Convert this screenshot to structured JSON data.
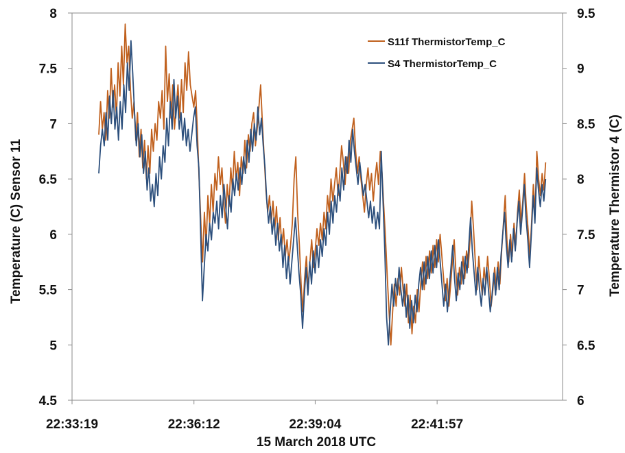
{
  "chart_data": {
    "type": "line",
    "title": "",
    "xlabel": "15 March 2018 UTC",
    "ylabel": "Temperature (C) Sensor 11",
    "ylabel_right": "Temperature Thermistor 4 (C)",
    "xlim_seconds": [
      0,
      696
    ],
    "x_tick_labels": [
      {
        "label": "22:33:19",
        "t": 0
      },
      {
        "label": "22:36:12",
        "t": 173
      },
      {
        "label": "22:39:04",
        "t": 345
      },
      {
        "label": "22:41:57",
        "t": 518
      }
    ],
    "ylim": [
      4.5,
      8
    ],
    "y_ticks": [
      "4.5",
      "5",
      "5.5",
      "6",
      "6.5",
      "7",
      "7.5",
      "8"
    ],
    "ylim_right": [
      6,
      9.5
    ],
    "y_ticks_right": [
      "6",
      "6.5",
      "7",
      "7.5",
      "8",
      "8.5",
      "9",
      "9.5"
    ],
    "grid": false,
    "legend_position": "top-right",
    "series": [
      {
        "name": "S11f ThermistorTemp_C",
        "axis": "left",
        "color": "#c0601d",
        "t_start": 38,
        "t_end": 672,
        "values": [
          6.9,
          7.2,
          6.95,
          7.1,
          6.85,
          7.3,
          7.05,
          7.5,
          7.15,
          7.35,
          7.05,
          7.55,
          7.25,
          7.7,
          7.35,
          7.9,
          7.55,
          7.7,
          7.3,
          7.05,
          7.2,
          6.85,
          7.1,
          6.7,
          6.95,
          6.6,
          6.85,
          6.5,
          6.8,
          6.55,
          6.95,
          6.75,
          7.0,
          6.85,
          7.2,
          7.05,
          7.3,
          6.95,
          7.7,
          7.2,
          7.45,
          7.05,
          7.35,
          6.95,
          7.15,
          7.35,
          7.05,
          7.4,
          7.1,
          7.55,
          7.3,
          7.65,
          7.35,
          7.25,
          7.15,
          7.3,
          6.95,
          6.5,
          6.1,
          5.75,
          6.2,
          5.9,
          6.35,
          6.1,
          6.45,
          6.2,
          6.55,
          6.4,
          6.7,
          6.45,
          6.6,
          6.3,
          6.1,
          6.45,
          6.25,
          6.6,
          6.4,
          6.75,
          6.5,
          6.65,
          6.35,
          6.7,
          6.55,
          6.85,
          6.6,
          6.9,
          6.75,
          7.0,
          7.1,
          6.8,
          6.95,
          7.15,
          7.35,
          7.0,
          6.7,
          6.4,
          6.2,
          6.35,
          6.1,
          6.3,
          6.05,
          6.25,
          5.95,
          6.15,
          5.9,
          6.05,
          5.8,
          5.95,
          5.75,
          5.9,
          6.1,
          6.5,
          6.7,
          6.2,
          5.9,
          5.55,
          5.3,
          5.6,
          5.8,
          5.5,
          5.75,
          5.95,
          5.7,
          5.85,
          6.05,
          5.9,
          6.1,
          5.95,
          6.2,
          6.05,
          6.35,
          6.2,
          6.5,
          6.3,
          6.45,
          6.6,
          6.35,
          6.55,
          6.8,
          6.65,
          6.45,
          6.7,
          6.55,
          6.85,
          6.95,
          7.05,
          6.75,
          6.55,
          6.7,
          6.5,
          6.35,
          6.2,
          6.45,
          6.6,
          6.4,
          6.55,
          6.3,
          6.5,
          6.65,
          6.45,
          6.75,
          6.55,
          6.25,
          5.95,
          5.6,
          5.3,
          5.0,
          5.3,
          5.55,
          5.35,
          5.6,
          5.45,
          5.7,
          5.5,
          5.35,
          5.55,
          5.2,
          5.45,
          5.1,
          5.35,
          5.2,
          5.5,
          5.3,
          5.55,
          5.75,
          5.5,
          5.8,
          5.6,
          5.85,
          5.65,
          5.9,
          5.7,
          5.95,
          5.75,
          6.0,
          5.8,
          5.6,
          5.4,
          5.6,
          5.35,
          5.55,
          5.75,
          5.95,
          5.65,
          5.45,
          5.7,
          5.55,
          5.8,
          5.6,
          5.85,
          5.7,
          5.95,
          6.3,
          6.05,
          5.75,
          5.5,
          5.8,
          5.6,
          5.45,
          5.7,
          5.55,
          5.8,
          5.6,
          5.35,
          5.5,
          5.7,
          5.5,
          5.75,
          5.55,
          5.85,
          6.1,
          6.35,
          5.95,
          5.75,
          6.0,
          5.8,
          6.1,
          5.9,
          6.2,
          6.4,
          6.1,
          6.3,
          6.55,
          6.25,
          6.05,
          5.8,
          6.1,
          6.45,
          6.2,
          6.75,
          6.5,
          6.35,
          6.55,
          6.4,
          6.65
        ]
      },
      {
        "name": "S4 ThermistorTemp_C",
        "axis": "right",
        "color": "#2c4f7c",
        "t_start": 38,
        "t_end": 672,
        "values": [
          8.05,
          8.3,
          8.45,
          8.3,
          8.6,
          8.35,
          8.75,
          8.5,
          8.8,
          8.45,
          8.65,
          8.35,
          8.7,
          8.45,
          8.85,
          8.6,
          9.05,
          8.8,
          9.25,
          8.95,
          8.6,
          8.3,
          8.5,
          8.2,
          8.4,
          8.05,
          8.25,
          7.9,
          8.1,
          7.8,
          7.95,
          7.75,
          8.05,
          7.85,
          8.2,
          8.0,
          8.3,
          8.15,
          8.55,
          8.3,
          8.7,
          8.45,
          8.9,
          8.55,
          8.75,
          8.45,
          8.6,
          8.35,
          8.55,
          8.3,
          8.45,
          8.25,
          8.4,
          8.55,
          8.65,
          8.3,
          8.1,
          7.5,
          6.9,
          7.2,
          7.5,
          7.35,
          7.6,
          7.45,
          7.7,
          7.6,
          7.8,
          7.55,
          7.85,
          7.65,
          7.95,
          7.75,
          7.55,
          7.85,
          7.7,
          8.0,
          7.85,
          8.05,
          7.9,
          8.1,
          7.95,
          8.2,
          8.05,
          8.35,
          8.15,
          8.45,
          8.25,
          8.5,
          8.35,
          8.65,
          8.4,
          8.55,
          8.3,
          8.1,
          7.8,
          7.6,
          7.75,
          7.5,
          7.65,
          7.4,
          7.6,
          7.35,
          7.5,
          7.2,
          7.4,
          7.1,
          7.3,
          7.05,
          7.25,
          7.45,
          7.65,
          7.4,
          7.15,
          6.95,
          6.65,
          6.95,
          7.2,
          6.95,
          7.25,
          7.05,
          7.35,
          7.15,
          7.4,
          7.2,
          7.45,
          7.3,
          7.55,
          7.4,
          7.7,
          7.5,
          7.8,
          7.6,
          7.85,
          7.7,
          7.95,
          7.8,
          8.1,
          7.9,
          8.2,
          8.05,
          8.35,
          8.15,
          8.45,
          8.25,
          8.1,
          7.95,
          8.15,
          8.0,
          7.85,
          7.95,
          7.8,
          7.65,
          7.8,
          7.6,
          7.75,
          7.55,
          7.7,
          7.55,
          8.25,
          7.8,
          7.35,
          6.75,
          6.5,
          6.8,
          7.05,
          6.85,
          7.1,
          6.95,
          7.2,
          7.0,
          6.85,
          7.05,
          6.75,
          6.95,
          6.65,
          6.9,
          6.7,
          6.95,
          6.8,
          7.05,
          7.2,
          7.0,
          7.25,
          7.05,
          7.3,
          7.1,
          7.35,
          7.15,
          7.4,
          7.2,
          7.45,
          7.25,
          7.05,
          6.85,
          7.05,
          6.8,
          7.0,
          7.2,
          7.4,
          7.1,
          6.9,
          7.15,
          7.0,
          7.25,
          7.05,
          7.3,
          7.15,
          7.4,
          7.65,
          7.35,
          7.15,
          6.95,
          7.2,
          7.0,
          6.85,
          7.1,
          6.95,
          7.2,
          7.0,
          6.8,
          6.95,
          7.15,
          6.95,
          7.2,
          7.0,
          7.3,
          7.5,
          7.7,
          7.4,
          7.2,
          7.45,
          7.25,
          7.55,
          7.35,
          7.6,
          7.8,
          7.5,
          7.7,
          7.95,
          7.65,
          7.45,
          7.2,
          7.5,
          7.85,
          7.6,
          8.1,
          7.9,
          7.75,
          7.95,
          7.8,
          8.0
        ]
      }
    ]
  }
}
